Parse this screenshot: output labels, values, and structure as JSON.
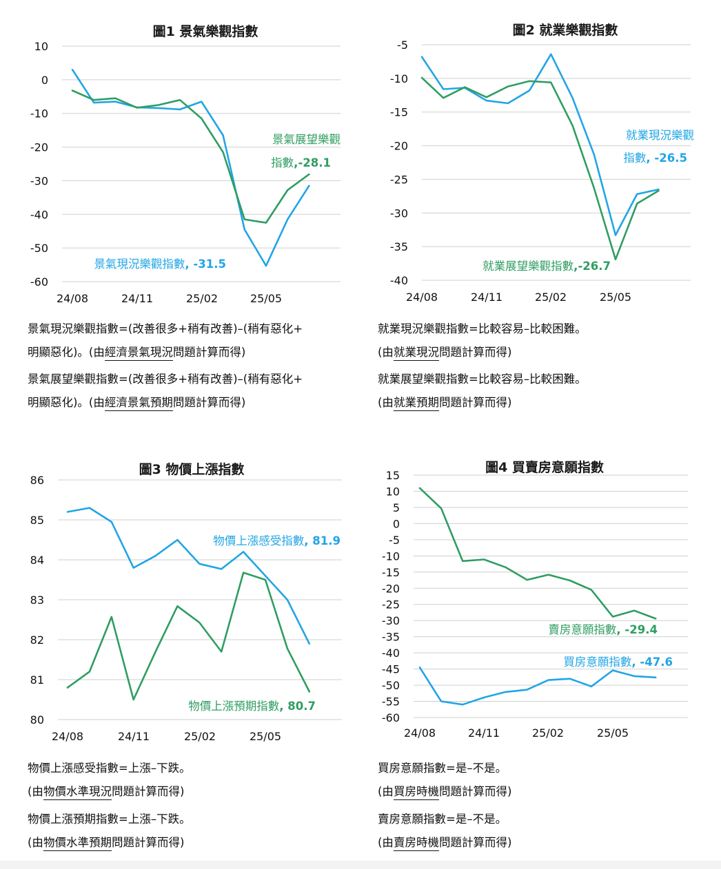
{
  "colors": {
    "blue": "#21a5e5",
    "green": "#2f9d62"
  },
  "chart_data": [
    {
      "type": "line",
      "title": "圖1  景氣樂觀指數",
      "x_ticks": [
        "24/08",
        "24/11",
        "25/02",
        "25/05"
      ],
      "ylim": [
        -60,
        10
      ],
      "y_ticks": [
        10,
        0,
        -10,
        -20,
        -30,
        -40,
        -50,
        -60
      ],
      "grid": true,
      "series": [
        {
          "name": "景氣現況樂觀指數",
          "label": [
            "景氣現況樂觀指數, -31.5"
          ],
          "color": "blue",
          "values": [
            3,
            -6.8,
            -6.5,
            -8.2,
            -8.4,
            -8.8,
            -6.5,
            -16.5,
            -44.5,
            -55.3,
            -41.5,
            -31.5
          ]
        },
        {
          "name": "景氣展望樂觀指數",
          "label": [
            "景氣展望樂觀",
            "指數,-28.1"
          ],
          "color": "green",
          "values": [
            -3.2,
            -6,
            -5.5,
            -8.3,
            -7.5,
            -6,
            -11.5,
            -21.5,
            -41.5,
            -42.5,
            -32.8,
            -28.1
          ]
        }
      ]
    },
    {
      "type": "line",
      "title": "圖2  就業樂觀指數",
      "x_ticks": [
        "24/08",
        "24/11",
        "25/02",
        "25/05"
      ],
      "ylim": [
        -40,
        -5
      ],
      "y_ticks": [
        -5,
        -10,
        -15,
        -20,
        -25,
        -30,
        -35,
        -40
      ],
      "grid": true,
      "series": [
        {
          "name": "就業現況樂觀指數",
          "label": [
            "就業現況樂觀",
            "指數, -26.5"
          ],
          "color": "blue",
          "values": [
            -6.8,
            -11.6,
            -11.4,
            -13.3,
            -13.7,
            -11.8,
            -6.4,
            -12.9,
            -21.3,
            -33.3,
            -27.2,
            -26.5
          ]
        },
        {
          "name": "就業展望樂觀指數",
          "label": [
            "就業展望樂觀指數,-26.7"
          ],
          "color": "green",
          "values": [
            -9.9,
            -12.9,
            -11.3,
            -12.8,
            -11.2,
            -10.4,
            -10.6,
            -17,
            -26.3,
            -36.9,
            -28.6,
            -26.7
          ]
        }
      ]
    },
    {
      "type": "line",
      "title": "圖3  物價上漲指數",
      "x_ticks": [
        "24/08",
        "24/11",
        "25/02",
        "25/05"
      ],
      "ylim": [
        80,
        86
      ],
      "y_ticks": [
        86,
        85,
        84,
        83,
        82,
        81,
        80
      ],
      "grid": true,
      "series": [
        {
          "name": "物價上漲感受指數",
          "label": [
            "物價上漲感受指數, 81.9"
          ],
          "color": "blue",
          "values": [
            85.2,
            85.3,
            84.95,
            83.8,
            84.1,
            84.5,
            83.9,
            83.77,
            84.2,
            83.6,
            83.0,
            81.9
          ]
        },
        {
          "name": "物價上漲預期指數",
          "label": [
            "物價上漲預期指數, 80.7"
          ],
          "color": "green",
          "values": [
            80.8,
            81.2,
            82.57,
            80.5,
            81.7,
            82.84,
            82.43,
            81.7,
            83.68,
            83.5,
            81.78,
            80.7
          ]
        }
      ]
    },
    {
      "type": "line",
      "title": "圖4  買賣房意願指數",
      "x_ticks": [
        "24/08",
        "24/11",
        "25/02",
        "25/05"
      ],
      "ylim": [
        -60,
        15
      ],
      "y_ticks": [
        15,
        10,
        5,
        0,
        -5,
        -10,
        -15,
        -20,
        -25,
        -30,
        -35,
        -40,
        -45,
        -50,
        -55,
        -60
      ],
      "grid": true,
      "series": [
        {
          "name": "賣房意願指數",
          "label": [
            "賣房意願指數, -29.4"
          ],
          "color": "green",
          "values": [
            11,
            4.7,
            -11.6,
            -11.1,
            -13.5,
            -17.4,
            -15.8,
            -17.6,
            -20.5,
            -28.8,
            -26.9,
            -29.4
          ]
        },
        {
          "name": "買房意願指數",
          "label": [
            "買房意願指數, -47.6"
          ],
          "color": "blue",
          "values": [
            -44.5,
            -55,
            -56,
            -53.8,
            -52.1,
            -51.4,
            -48.4,
            -48,
            -50.4,
            -45.4,
            -47.2,
            -47.6
          ]
        }
      ]
    }
  ],
  "notes": {
    "c1a": {
      "l1": "景氣現況樂觀指數=(改善很多+稍有改善)–(稍有惡化+",
      "l2_pre": "明顯惡化)。(由",
      "l2_u": "經濟景氣現況",
      "l2_post": "問題計算而得)"
    },
    "c1b": {
      "l1": "景氣展望樂觀指數=(改善很多+稍有改善)–(稍有惡化+",
      "l2_pre": "明顯惡化)。(由",
      "l2_u": "經濟景氣預期",
      "l2_post": "問題計算而得)"
    },
    "c2a": {
      "l1": "就業現況樂觀指數=比較容易–比較困難。",
      "l2_pre": "(由",
      "l2_u": "就業現況",
      "l2_post": "問題計算而得)"
    },
    "c2b": {
      "l1": "就業展望樂觀指數=比較容易–比較困難。",
      "l2_pre": "(由",
      "l2_u": "就業預期",
      "l2_post": "問題計算而得)"
    },
    "c3a": {
      "l1": "物價上漲感受指數=上漲–下跌。",
      "l2_pre": "(由",
      "l2_u": "物價水準現況",
      "l2_post": "問題計算而得)"
    },
    "c3b": {
      "l1": "物價上漲預期指數=上漲–下跌。",
      "l2_pre": "(由",
      "l2_u": "物價水準預期",
      "l2_post": "問題計算而得)"
    },
    "c4a": {
      "l1": "買房意願指數=是–不是。",
      "l2_pre": "(由",
      "l2_u": "買房時機",
      "l2_post": "問題計算而得)"
    },
    "c4b": {
      "l1": "賣房意願指數=是–不是。",
      "l2_pre": "(由",
      "l2_u": "賣房時機",
      "l2_post": "問題計算而得)"
    }
  }
}
